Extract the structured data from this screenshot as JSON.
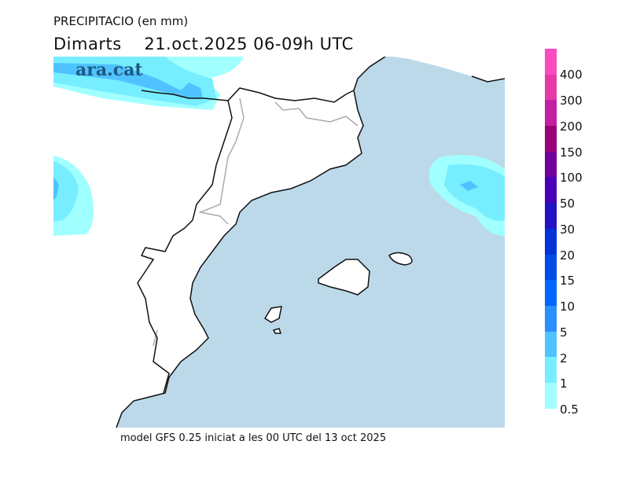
{
  "title": "PRECIPITACIO (en mm)",
  "subtitle": "Dimarts    21.oct.2025 06-09h UTC",
  "logo": "ara.cat",
  "footer": "model GFS 0.25 iniciat a les 00 UTC del 13 oct 2025",
  "colors": {
    "sea": "#bcd9ea",
    "land": "#ffffff",
    "coast": "#111111"
  },
  "legend": {
    "labels": [
      "400",
      "300",
      "200",
      "150",
      "100",
      "50",
      "30",
      "20",
      "15",
      "10",
      "5",
      "2",
      "1",
      "0.5"
    ],
    "colors": [
      "#fb4bc0",
      "#e33aa6",
      "#c41fa3",
      "#9a0077",
      "#6f0099",
      "#4a00b8",
      "#2313c2",
      "#0033d8",
      "#004ce8",
      "#0066ff",
      "#2a8fff",
      "#4fc3ff",
      "#77eeff",
      "#a0ffff"
    ]
  }
}
